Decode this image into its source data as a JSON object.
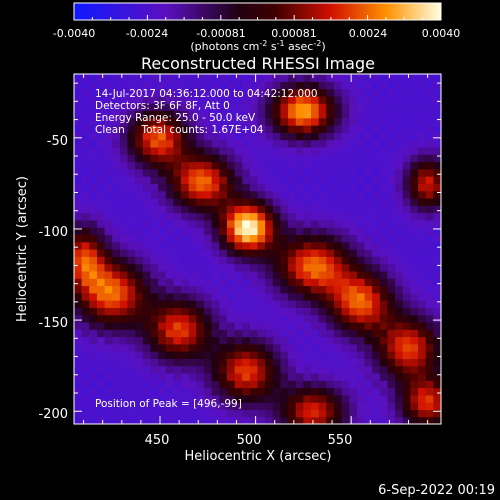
{
  "colorbar": {
    "ticks": [
      "-0.0040",
      "-0.0024",
      "-0.00081",
      "0.00081",
      "0.0024",
      "0.0040"
    ],
    "units_main": "(photons cm",
    "units_exp1": "-2",
    "units_mid": " s",
    "units_exp2": "-1",
    "units_tail": " asec",
    "units_exp3": "-2",
    "units_close": ")",
    "range": [
      -0.004,
      0.004
    ]
  },
  "chart_data": {
    "type": "heatmap",
    "title": "Reconstructed RHESSI Image",
    "xlabel": "Heliocentric X (arcsec)",
    "ylabel": "Heliocentric Y (arcsec)",
    "xlim": [
      405,
      597
    ],
    "ylim": [
      -207,
      -15
    ],
    "x_ticks": [
      "450",
      "500",
      "550"
    ],
    "y_ticks": [
      "-50",
      "-100",
      "-150",
      "-200"
    ],
    "info_lines": [
      "14-Jul-2017 04:36:12.000 to 04:42:12.000",
      "Detectors: 3F 6F 8F, Att 0",
      "Energy Range: 25.0 - 50.0 keV",
      "Clean     Total counts: 1.67E+04"
    ],
    "peak_label": "Position of Peak = [496,-99]",
    "peak": [
      496,
      -99
    ],
    "sources": [
      {
        "x": 496,
        "y": -99,
        "amp": 1.0,
        "sx": 10,
        "sy": 10
      },
      {
        "x": 472,
        "y": -74,
        "amp": 0.6,
        "sx": 12,
        "sy": 11
      },
      {
        "x": 449,
        "y": -50,
        "amp": 0.55,
        "sx": 11,
        "sy": 11
      },
      {
        "x": 530,
        "y": -120,
        "amp": 0.6,
        "sx": 14,
        "sy": 12
      },
      {
        "x": 555,
        "y": -140,
        "amp": 0.55,
        "sx": 12,
        "sy": 12
      },
      {
        "x": 580,
        "y": -165,
        "amp": 0.5,
        "sx": 12,
        "sy": 12
      },
      {
        "x": 525,
        "y": -35,
        "amp": 0.75,
        "sx": 12,
        "sy": 10
      },
      {
        "x": 425,
        "y": -135,
        "amp": 0.6,
        "sx": 13,
        "sy": 13
      },
      {
        "x": 460,
        "y": -155,
        "amp": 0.5,
        "sx": 12,
        "sy": 12
      },
      {
        "x": 495,
        "y": -178,
        "amp": 0.5,
        "sx": 12,
        "sy": 12
      },
      {
        "x": 530,
        "y": -200,
        "amp": 0.45,
        "sx": 12,
        "sy": 10
      },
      {
        "x": 410,
        "y": -115,
        "amp": 0.4,
        "sx": 8,
        "sy": 12
      },
      {
        "x": 590,
        "y": -75,
        "amp": 0.4,
        "sx": 8,
        "sy": 10
      },
      {
        "x": 590,
        "y": -195,
        "amp": 0.45,
        "sx": 10,
        "sy": 10
      }
    ],
    "background_level": -0.6,
    "pixel_size_arcsec": 4
  },
  "footer": {
    "date": "6-Sep-2022 00:19"
  }
}
